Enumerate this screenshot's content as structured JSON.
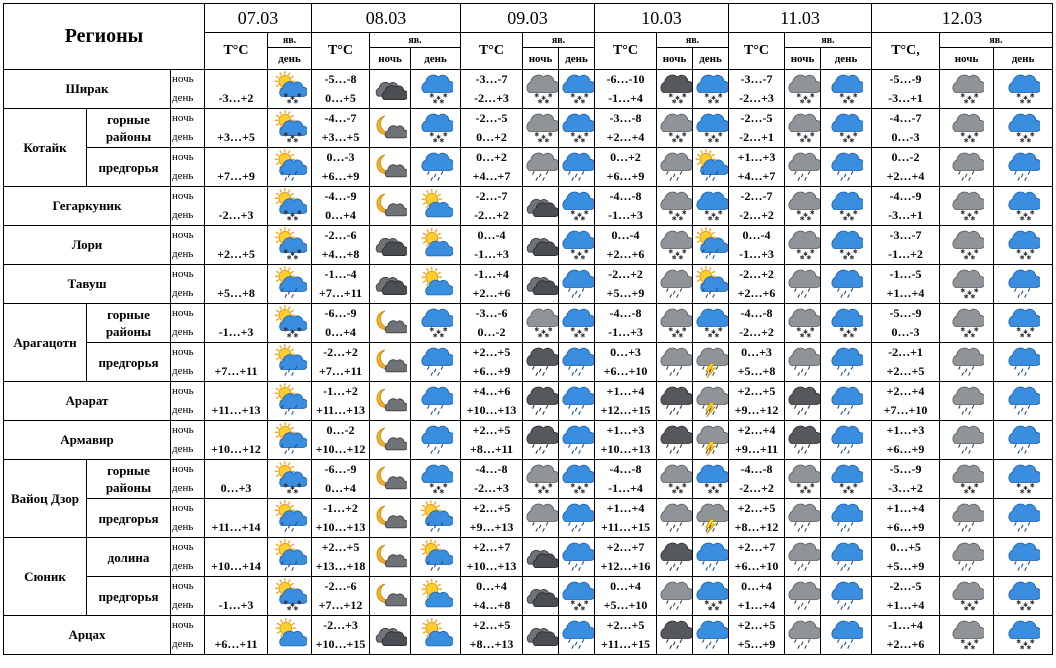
{
  "header": {
    "regions_title": "Регионы",
    "dates": [
      "07.03",
      "08.03",
      "09.03",
      "10.03",
      "11.03",
      "12.03"
    ],
    "temp_label": "T°C",
    "temp_label_last": "T°C,",
    "phenomena_label": "яв.",
    "night_label": "ночь",
    "day_label": "день"
  },
  "row_labels": {
    "night": "ночь",
    "day": "день"
  },
  "regions": [
    {
      "name": "Ширак",
      "sub": "",
      "rows": [
        {
          "t07": "-3…+2",
          "i07": "sun-cloud-snow",
          "t08n": "-5…-8",
          "t08d": "0…+5",
          "i08n": "cloud-dark",
          "i08d": "cloud-snow",
          "t09n": "-3…-7",
          "t09d": "-2…+3",
          "i09n": "cloud-snow-grey",
          "i09d": "cloud-snow",
          "t10n": "-6…-10",
          "t10d": "-1…+4",
          "i10n": "cloud-snow-dark",
          "i10d": "cloud-snow",
          "t11n": "-3…-7",
          "t11d": "-2…+3",
          "i11n": "cloud-snow-grey",
          "i11d": "cloud-snow",
          "t12n": "-5…-9",
          "t12d": "-3…+1",
          "i12n": "cloud-snow-grey",
          "i12d": "cloud-snow"
        }
      ]
    },
    {
      "name": "Котайк",
      "sub": "горные районы",
      "rows": [
        {
          "t07": "+3…+5",
          "i07": "sun-cloud-snow",
          "t08n": "-4…-7",
          "t08d": "+3…+5",
          "i08n": "moon-cloud",
          "i08d": "cloud-snow",
          "t09n": "-2…-5",
          "t09d": "0…+2",
          "i09n": "cloud-snow-grey",
          "i09d": "cloud-snow",
          "t10n": "-3…-8",
          "t10d": "+2…+4",
          "i10n": "cloud-snow-grey",
          "i10d": "cloud-snow",
          "t11n": "-2…-5",
          "t11d": "-2…+1",
          "i11n": "cloud-snow-grey",
          "i11d": "cloud-snow",
          "t12n": "-4…-7",
          "t12d": "0…-3",
          "i12n": "cloud-snow-grey",
          "i12d": "cloud-snow"
        }
      ]
    },
    {
      "name": "",
      "sub": "предгорья",
      "rows": [
        {
          "t07": "+7…+9",
          "i07": "sun-cloud-rain",
          "t08n": "0…-3",
          "t08d": "+6…+9",
          "i08n": "moon-cloud",
          "i08d": "cloud-rain",
          "t09n": "0…+2",
          "t09d": "+4…+7",
          "i09n": "cloud-rain-grey",
          "i09d": "cloud-rain",
          "t10n": "0…+2",
          "t10d": "+6…+9",
          "i10n": "cloud-rain-grey",
          "i10d": "sun-cloud-rain",
          "t11n": "+1…+3",
          "t11d": "+4…+7",
          "i11n": "cloud-rain-grey",
          "i11d": "cloud-rain",
          "t12n": "0…-2",
          "t12d": "+2…+4",
          "i12n": "cloud-rain-grey",
          "i12d": "cloud-rain"
        }
      ]
    },
    {
      "name": "Гегаркуник",
      "sub": "",
      "rows": [
        {
          "t07": "-2…+3",
          "i07": "sun-cloud-snow",
          "t08n": "-4…-9",
          "t08d": "0…+4",
          "i08n": "moon-cloud",
          "i08d": "sun-cloud",
          "t09n": "-2…-7",
          "t09d": "-2…+2",
          "i09n": "cloud-dark",
          "i09d": "cloud-snow",
          "t10n": "-4…-8",
          "t10d": "-1…+3",
          "i10n": "cloud-snow-grey",
          "i10d": "cloud-snow",
          "t11n": "-2…-7",
          "t11d": "-2…+2",
          "i11n": "cloud-snow-grey",
          "i11d": "cloud-snow",
          "t12n": "-4…-9",
          "t12d": "-3…+1",
          "i12n": "cloud-snow-grey",
          "i12d": "cloud-snow"
        }
      ]
    },
    {
      "name": "Лори",
      "sub": "",
      "rows": [
        {
          "t07": "+2…+5",
          "i07": "sun-cloud-snow",
          "t08n": "-2…-6",
          "t08d": "+4…+8",
          "i08n": "cloud-dark",
          "i08d": "sun-cloud",
          "t09n": "0…-4",
          "t09d": "-1…+3",
          "i09n": "cloud-dark",
          "i09d": "cloud-snow",
          "t10n": "0…-4",
          "t10d": "+2…+6",
          "i10n": "cloud-snow-grey",
          "i10d": "sun-cloud-rain",
          "t11n": "0…-4",
          "t11d": "-1…+3",
          "i11n": "cloud-snow-grey",
          "i11d": "cloud-snow",
          "t12n": "-3…-7",
          "t12d": "-1…+2",
          "i12n": "cloud-snow-grey",
          "i12d": "cloud-snow"
        }
      ]
    },
    {
      "name": "Тавуш",
      "sub": "",
      "rows": [
        {
          "t07": "+5…+8",
          "i07": "sun-cloud-rain",
          "t08n": "-1…-4",
          "t08d": "+7…+11",
          "i08n": "cloud-dark",
          "i08d": "sun-cloud",
          "t09n": "-1…+4",
          "t09d": "+2…+6",
          "i09n": "cloud-dark",
          "i09d": "cloud-rain",
          "t10n": "-2…+2",
          "t10d": "+5…+9",
          "i10n": "cloud-rain-grey",
          "i10d": "sun-cloud-rain",
          "t11n": "-2…+2",
          "t11d": "+2…+6",
          "i11n": "cloud-rain-grey",
          "i11d": "cloud-rain",
          "t12n": "-1…-5",
          "t12d": "+1…+4",
          "i12n": "cloud-snow-grey",
          "i12d": "cloud-rain"
        }
      ]
    },
    {
      "name": "Арагацотн",
      "sub": "горные районы",
      "rows": [
        {
          "t07": "-1…+3",
          "i07": "sun-cloud-snow",
          "t08n": "-6…-9",
          "t08d": "0…+4",
          "i08n": "moon-cloud",
          "i08d": "cloud-snow",
          "t09n": "-3…-6",
          "t09d": "0…-2",
          "i09n": "cloud-snow-grey",
          "i09d": "cloud-snow",
          "t10n": "-4…-8",
          "t10d": "-1…+3",
          "i10n": "cloud-snow-grey",
          "i10d": "cloud-snow",
          "t11n": "-4…-8",
          "t11d": "-2…+2",
          "i11n": "cloud-snow-grey",
          "i11d": "cloud-snow",
          "t12n": "-5…-9",
          "t12d": "0…-3",
          "i12n": "cloud-snow-grey",
          "i12d": "cloud-snow"
        }
      ]
    },
    {
      "name": "",
      "sub": "предгорья",
      "rows": [
        {
          "t07": "+7…+11",
          "i07": "sun-cloud-rain",
          "t08n": "-2…+2",
          "t08d": "+7…+11",
          "i08n": "moon-cloud",
          "i08d": "cloud-rain",
          "t09n": "+2…+5",
          "t09d": "+6…+9",
          "i09n": "cloud-rain-dark",
          "i09d": "cloud-rain",
          "t10n": "0…+3",
          "t10d": "+6…+10",
          "i10n": "cloud-rain-grey",
          "i10d": "storm",
          "t11n": "0…+3",
          "t11d": "+5…+8",
          "i11n": "cloud-rain-grey",
          "i11d": "cloud-rain",
          "t12n": "-2…+1",
          "t12d": "+2…+5",
          "i12n": "cloud-rain-grey",
          "i12d": "cloud-rain"
        }
      ]
    },
    {
      "name": "Арарат",
      "sub": "",
      "rows": [
        {
          "t07": "+11…+13",
          "i07": "sun-cloud-rain",
          "t08n": "-1…+2",
          "t08d": "+11…+13",
          "i08n": "moon-cloud",
          "i08d": "cloud-rain",
          "t09n": "+4…+6",
          "t09d": "+10…+13",
          "i09n": "cloud-rain-dark",
          "i09d": "cloud-rain",
          "t10n": "+1…+4",
          "t10d": "+12…+15",
          "i10n": "cloud-rain-dark",
          "i10d": "storm",
          "t11n": "+2…+5",
          "t11d": "+9…+12",
          "i11n": "cloud-rain-dark",
          "i11d": "cloud-rain",
          "t12n": "+2…+4",
          "t12d": "+7…+10",
          "i12n": "cloud-rain-grey",
          "i12d": "cloud-rain"
        }
      ]
    },
    {
      "name": "Армавир",
      "sub": "",
      "rows": [
        {
          "t07": "+10…+12",
          "i07": "sun-cloud-rain",
          "t08n": "0…-2",
          "t08d": "+10…+12",
          "i08n": "moon-cloud",
          "i08d": "cloud-rain",
          "t09n": "+2…+5",
          "t09d": "+8…+11",
          "i09n": "cloud-rain-dark",
          "i09d": "cloud-rain",
          "t10n": "+1…+3",
          "t10d": "+10…+13",
          "i10n": "cloud-rain-dark",
          "i10d": "storm",
          "t11n": "+2…+4",
          "t11d": "+9…+11",
          "i11n": "cloud-rain-dark",
          "i11d": "cloud-rain",
          "t12n": "+1…+3",
          "t12d": "+6…+9",
          "i12n": "cloud-rain-grey",
          "i12d": "cloud-rain"
        }
      ]
    },
    {
      "name": "Вайоц Дзор",
      "sub": "горные районы",
      "rows": [
        {
          "t07": "0…+3",
          "i07": "sun-cloud-snow",
          "t08n": "-6…-9",
          "t08d": "0…+4",
          "i08n": "moon-cloud",
          "i08d": "cloud-snow",
          "t09n": "-4…-8",
          "t09d": "-2…+3",
          "i09n": "cloud-snow-grey",
          "i09d": "cloud-snow",
          "t10n": "-4…-8",
          "t10d": "-1…+4",
          "i10n": "cloud-snow-grey",
          "i10d": "cloud-snow",
          "t11n": "-4…-8",
          "t11d": "-2…+2",
          "i11n": "cloud-snow-grey",
          "i11d": "cloud-snow",
          "t12n": "-5…-9",
          "t12d": "-3…+2",
          "i12n": "cloud-snow-grey",
          "i12d": "cloud-snow"
        }
      ]
    },
    {
      "name": "",
      "sub": "предгорья",
      "rows": [
        {
          "t07": "+11…+14",
          "i07": "sun-cloud-rain",
          "t08n": "-1…+2",
          "t08d": "+10…+13",
          "i08n": "moon-cloud",
          "i08d": "sun-cloud-rain",
          "t09n": "+2…+5",
          "t09d": "+9…+13",
          "i09n": "cloud-rain-grey",
          "i09d": "cloud-rain",
          "t10n": "+1…+4",
          "t10d": "+11…+15",
          "i10n": "cloud-rain-grey",
          "i10d": "storm",
          "t11n": "+2…+5",
          "t11d": "+8…+12",
          "i11n": "cloud-rain-grey",
          "i11d": "cloud-rain",
          "t12n": "+1…+4",
          "t12d": "+6…+9",
          "i12n": "cloud-rain-grey",
          "i12d": "cloud-rain"
        }
      ]
    },
    {
      "name": "Сюник",
      "sub": "долина",
      "rows": [
        {
          "t07": "+10…+14",
          "i07": "sun-cloud-rain",
          "t08n": "+2…+5",
          "t08d": "+13…+18",
          "i08n": "moon-cloud",
          "i08d": "sun-cloud-rain",
          "t09n": "+2…+7",
          "t09d": "+10…+13",
          "i09n": "cloud-dark",
          "i09d": "cloud-rain",
          "t10n": "+2…+7",
          "t10d": "+12…+16",
          "i10n": "cloud-rain-dark",
          "i10d": "cloud-rain",
          "t11n": "+2…+7",
          "t11d": "+6…+10",
          "i11n": "cloud-rain-grey",
          "i11d": "cloud-rain",
          "t12n": "0…+5",
          "t12d": "+5…+9",
          "i12n": "cloud-rain-grey",
          "i12d": "cloud-rain"
        }
      ]
    },
    {
      "name": "",
      "sub": "предгорья",
      "rows": [
        {
          "t07": "-1…+3",
          "i07": "sun-cloud-snow",
          "t08n": "-2…-6",
          "t08d": "+7…+12",
          "i08n": "moon-cloud",
          "i08d": "sun-cloud",
          "t09n": "0…+4",
          "t09d": "+4…+8",
          "i09n": "cloud-dark",
          "i09d": "cloud-snow",
          "t10n": "0…+4",
          "t10d": "+5…+10",
          "i10n": "cloud-rain-grey",
          "i10d": "cloud-snow",
          "t11n": "0…+4",
          "t11d": "+1…+4",
          "i11n": "cloud-rain-grey",
          "i11d": "cloud-rain",
          "t12n": "-2…-5",
          "t12d": "+1…+4",
          "i12n": "cloud-snow-grey",
          "i12d": "cloud-snow"
        }
      ]
    },
    {
      "name": "Арцах",
      "sub": "",
      "rows": [
        {
          "t07": "+6…+11",
          "i07": "sun-cloud",
          "t08n": "-2…+3",
          "t08d": "+10…+15",
          "i08n": "cloud-dark",
          "i08d": "sun-cloud",
          "t09n": "+2…+5",
          "t09d": "+8…+13",
          "i09n": "cloud-dark",
          "i09d": "cloud-rain",
          "t10n": "+2…+5",
          "t10d": "+11…+15",
          "i10n": "cloud-rain-dark",
          "i10d": "cloud-rain",
          "t11n": "+2…+5",
          "t11d": "+5…+9",
          "i11n": "cloud-rain-grey",
          "i11d": "cloud-rain",
          "t12n": "-1…+4",
          "t12d": "+2…+6",
          "i12n": "cloud-snow-grey",
          "i12d": "cloud-snow"
        }
      ]
    }
  ]
}
